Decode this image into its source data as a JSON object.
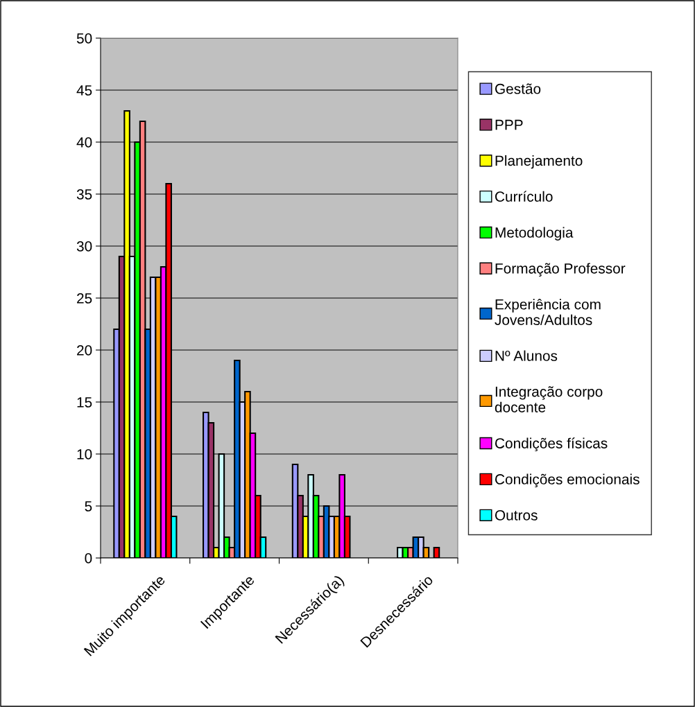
{
  "chart_data": {
    "type": "bar",
    "categories": [
      "Muito importante",
      "Importante",
      "Necessário(a)",
      "Desnecessário"
    ],
    "series": [
      {
        "name": "Gestão",
        "color": "#9999ff",
        "values": [
          22,
          14,
          9,
          0
        ]
      },
      {
        "name": "PPP",
        "color": "#993366",
        "values": [
          29,
          13,
          6,
          0
        ]
      },
      {
        "name": "Planejamento",
        "color": "#ffff00",
        "values": [
          43,
          1,
          4,
          0
        ]
      },
      {
        "name": "Currículo",
        "color": "#ccffff",
        "values": [
          29,
          10,
          8,
          1
        ]
      },
      {
        "name": "Metodologia",
        "color": "#00ff00",
        "values": [
          40,
          2,
          6,
          1
        ]
      },
      {
        "name": "Formação Professor",
        "color": "#ff8080",
        "values": [
          42,
          1,
          4,
          1
        ]
      },
      {
        "name": "Experiência com\nJovens/Adultos",
        "color": "#0066cc",
        "values": [
          22,
          19,
          5,
          2
        ]
      },
      {
        "name": "Nº Alunos",
        "color": "#ccccff",
        "values": [
          27,
          15,
          4,
          2
        ]
      },
      {
        "name": "Integração corpo\ndocente",
        "color": "#ff9900",
        "values": [
          27,
          16,
          4,
          1
        ]
      },
      {
        "name": "Condições físicas",
        "color": "#ff00ff",
        "values": [
          28,
          12,
          8,
          0
        ]
      },
      {
        "name": "Condições emocionais",
        "color": "#ff0000",
        "values": [
          36,
          6,
          4,
          1
        ]
      },
      {
        "name": "Outros",
        "color": "#00ffff",
        "values": [
          4,
          2,
          0,
          0
        ]
      }
    ],
    "ylim": [
      0,
      50
    ],
    "yticks": [
      0,
      5,
      10,
      15,
      20,
      25,
      30,
      35,
      40,
      45,
      50
    ],
    "grid": "y",
    "legend": "right"
  }
}
